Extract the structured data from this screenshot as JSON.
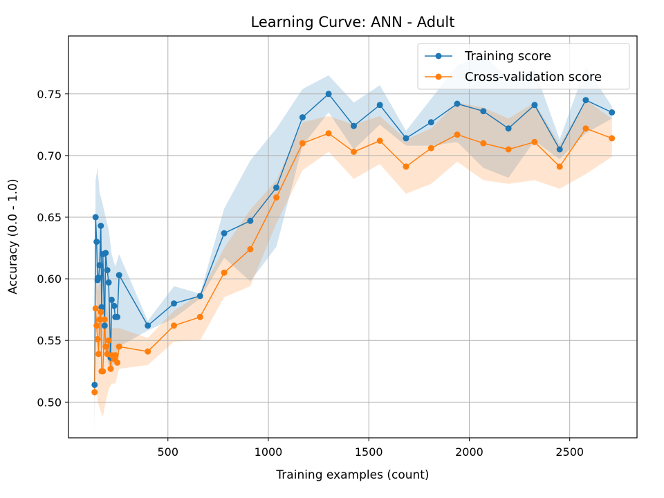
{
  "chart_data": {
    "type": "line",
    "title": "Learning Curve: ANN - Adult",
    "xlabel": "Training examples (count)",
    "ylabel": "Accuracy (0.0 - 1.0)",
    "xlim": [
      5,
      2835
    ],
    "ylim": [
      0.471,
      0.797
    ],
    "xticks": [
      500,
      1000,
      1500,
      2000,
      2500
    ],
    "yticks": [
      0.5,
      0.55,
      0.6,
      0.65,
      0.7,
      0.75
    ],
    "grid": true,
    "legend_position": "top-right",
    "series": [
      {
        "name": "Training score",
        "color": "#1f77b4",
        "points": [
          [
            135,
            0.514
          ],
          [
            140,
            0.65
          ],
          [
            145,
            0.63
          ],
          [
            150,
            0.599
          ],
          [
            155,
            0.601
          ],
          [
            160,
            0.611
          ],
          [
            166,
            0.643
          ],
          [
            170,
            0.577
          ],
          [
            176,
            0.62
          ],
          [
            185,
            0.562
          ],
          [
            190,
            0.621
          ],
          [
            198,
            0.607
          ],
          [
            205,
            0.597
          ],
          [
            215,
            0.536
          ],
          [
            220,
            0.583
          ],
          [
            232,
            0.578
          ],
          [
            238,
            0.569
          ],
          [
            248,
            0.569
          ],
          [
            257,
            0.603
          ],
          [
            400,
            0.562
          ],
          [
            530,
            0.58
          ],
          [
            660,
            0.586
          ],
          [
            780,
            0.637
          ],
          [
            910,
            0.647
          ],
          [
            1040,
            0.674
          ],
          [
            1170,
            0.731
          ],
          [
            1300,
            0.75
          ],
          [
            1425,
            0.724
          ],
          [
            1555,
            0.741
          ],
          [
            1685,
            0.714
          ],
          [
            1810,
            0.727
          ],
          [
            1940,
            0.742
          ],
          [
            2070,
            0.736
          ],
          [
            2195,
            0.722
          ],
          [
            2325,
            0.741
          ],
          [
            2450,
            0.705
          ],
          [
            2580,
            0.745
          ],
          [
            2710,
            0.735
          ]
        ],
        "band_upper": [
          [
            135,
            0.555
          ],
          [
            140,
            0.68
          ],
          [
            150,
            0.69
          ],
          [
            160,
            0.67
          ],
          [
            176,
            0.66
          ],
          [
            190,
            0.65
          ],
          [
            205,
            0.64
          ],
          [
            220,
            0.62
          ],
          [
            238,
            0.61
          ],
          [
            257,
            0.62
          ],
          [
            400,
            0.566
          ],
          [
            530,
            0.594
          ],
          [
            660,
            0.588
          ],
          [
            780,
            0.657
          ],
          [
            910,
            0.696
          ],
          [
            1040,
            0.722
          ],
          [
            1170,
            0.754
          ],
          [
            1300,
            0.765
          ],
          [
            1425,
            0.743
          ],
          [
            1555,
            0.757
          ],
          [
            1685,
            0.72
          ],
          [
            1810,
            0.746
          ],
          [
            1940,
            0.773
          ],
          [
            2070,
            0.782
          ],
          [
            2195,
            0.762
          ],
          [
            2325,
            0.77
          ],
          [
            2450,
            0.713
          ],
          [
            2580,
            0.772
          ],
          [
            2710,
            0.74
          ]
        ],
        "band_lower": [
          [
            135,
            0.473
          ],
          [
            140,
            0.6
          ],
          [
            150,
            0.56
          ],
          [
            160,
            0.555
          ],
          [
            176,
            0.545
          ],
          [
            190,
            0.54
          ],
          [
            205,
            0.53
          ],
          [
            220,
            0.525
          ],
          [
            238,
            0.535
          ],
          [
            257,
            0.545
          ],
          [
            400,
            0.558
          ],
          [
            530,
            0.568
          ],
          [
            660,
            0.584
          ],
          [
            780,
            0.617
          ],
          [
            910,
            0.598
          ],
          [
            1040,
            0.626
          ],
          [
            1170,
            0.708
          ],
          [
            1300,
            0.735
          ],
          [
            1425,
            0.705
          ],
          [
            1555,
            0.725
          ],
          [
            1685,
            0.708
          ],
          [
            1810,
            0.708
          ],
          [
            1940,
            0.711
          ],
          [
            2070,
            0.69
          ],
          [
            2195,
            0.682
          ],
          [
            2325,
            0.712
          ],
          [
            2450,
            0.697
          ],
          [
            2580,
            0.718
          ],
          [
            2710,
            0.73
          ]
        ]
      },
      {
        "name": "Cross-validation score",
        "color": "#ff7f0e",
        "points": [
          [
            135,
            0.508
          ],
          [
            140,
            0.576
          ],
          [
            145,
            0.562
          ],
          [
            150,
            0.551
          ],
          [
            155,
            0.539
          ],
          [
            160,
            0.567
          ],
          [
            166,
            0.573
          ],
          [
            170,
            0.525
          ],
          [
            176,
            0.525
          ],
          [
            185,
            0.567
          ],
          [
            190,
            0.545
          ],
          [
            198,
            0.539
          ],
          [
            205,
            0.55
          ],
          [
            215,
            0.527
          ],
          [
            220,
            0.538
          ],
          [
            232,
            0.535
          ],
          [
            238,
            0.538
          ],
          [
            248,
            0.532
          ],
          [
            257,
            0.545
          ],
          [
            400,
            0.541
          ],
          [
            530,
            0.562
          ],
          [
            660,
            0.569
          ],
          [
            780,
            0.605
          ],
          [
            910,
            0.624
          ],
          [
            1040,
            0.666
          ],
          [
            1170,
            0.71
          ],
          [
            1300,
            0.718
          ],
          [
            1425,
            0.703
          ],
          [
            1555,
            0.712
          ],
          [
            1685,
            0.691
          ],
          [
            1810,
            0.706
          ],
          [
            1940,
            0.717
          ],
          [
            2070,
            0.71
          ],
          [
            2195,
            0.705
          ],
          [
            2325,
            0.711
          ],
          [
            2450,
            0.691
          ],
          [
            2580,
            0.722
          ],
          [
            2710,
            0.714
          ]
        ],
        "band_upper": [
          [
            135,
            0.53
          ],
          [
            140,
            0.6
          ],
          [
            150,
            0.59
          ],
          [
            160,
            0.6
          ],
          [
            176,
            0.585
          ],
          [
            190,
            0.58
          ],
          [
            205,
            0.57
          ],
          [
            220,
            0.56
          ],
          [
            238,
            0.56
          ],
          [
            257,
            0.56
          ],
          [
            400,
            0.552
          ],
          [
            530,
            0.574
          ],
          [
            660,
            0.588
          ],
          [
            780,
            0.625
          ],
          [
            910,
            0.656
          ],
          [
            1040,
            0.68
          ],
          [
            1170,
            0.727
          ],
          [
            1300,
            0.732
          ],
          [
            1425,
            0.725
          ],
          [
            1555,
            0.732
          ],
          [
            1685,
            0.713
          ],
          [
            1810,
            0.722
          ],
          [
            1940,
            0.743
          ],
          [
            2070,
            0.739
          ],
          [
            2195,
            0.73
          ],
          [
            2325,
            0.743
          ],
          [
            2450,
            0.709
          ],
          [
            2580,
            0.745
          ],
          [
            2710,
            0.73
          ]
        ],
        "band_lower": [
          [
            135,
            0.485
          ],
          [
            140,
            0.53
          ],
          [
            150,
            0.5
          ],
          [
            160,
            0.495
          ],
          [
            176,
            0.488
          ],
          [
            190,
            0.5
          ],
          [
            205,
            0.51
          ],
          [
            220,
            0.515
          ],
          [
            238,
            0.515
          ],
          [
            257,
            0.527
          ],
          [
            400,
            0.53
          ],
          [
            530,
            0.549
          ],
          [
            660,
            0.55
          ],
          [
            780,
            0.585
          ],
          [
            910,
            0.594
          ],
          [
            1040,
            0.645
          ],
          [
            1170,
            0.688
          ],
          [
            1300,
            0.703
          ],
          [
            1425,
            0.681
          ],
          [
            1555,
            0.693
          ],
          [
            1685,
            0.669
          ],
          [
            1810,
            0.677
          ],
          [
            1940,
            0.695
          ],
          [
            2070,
            0.68
          ],
          [
            2195,
            0.677
          ],
          [
            2325,
            0.68
          ],
          [
            2450,
            0.673
          ],
          [
            2580,
            0.685
          ],
          [
            2710,
            0.699
          ]
        ]
      }
    ]
  }
}
